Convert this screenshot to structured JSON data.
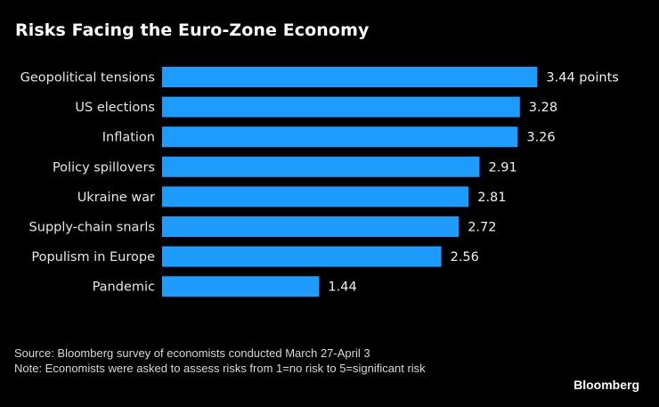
{
  "title": "Risks Facing the Euro-Zone Economy",
  "chart_data": {
    "type": "bar",
    "orientation": "horizontal",
    "title": "Risks Facing the Euro-Zone Economy",
    "categories": [
      "Geopolitical tensions",
      "US elections",
      "Inflation",
      "Policy spillovers",
      "Ukraine war",
      "Supply-chain snarls",
      "Populism in Europe",
      "Pandemic"
    ],
    "values": [
      3.44,
      3.28,
      3.26,
      2.91,
      2.81,
      2.72,
      2.56,
      1.44
    ],
    "value_labels": [
      "3.44 points",
      "3.28",
      "3.26",
      "2.91",
      "2.81",
      "2.72",
      "2.56",
      "1.44"
    ],
    "xlabel": "",
    "ylabel": "",
    "xlim": [
      0,
      3.44
    ],
    "grid": false,
    "bar_color": "#1e9bff"
  },
  "footer": {
    "source": "Source: Bloomberg survey of economists conducted March 27-April 3",
    "note": "Note: Economists were asked to assess risks from 1=no risk to 5=significant risk"
  },
  "brand": "Bloomberg"
}
